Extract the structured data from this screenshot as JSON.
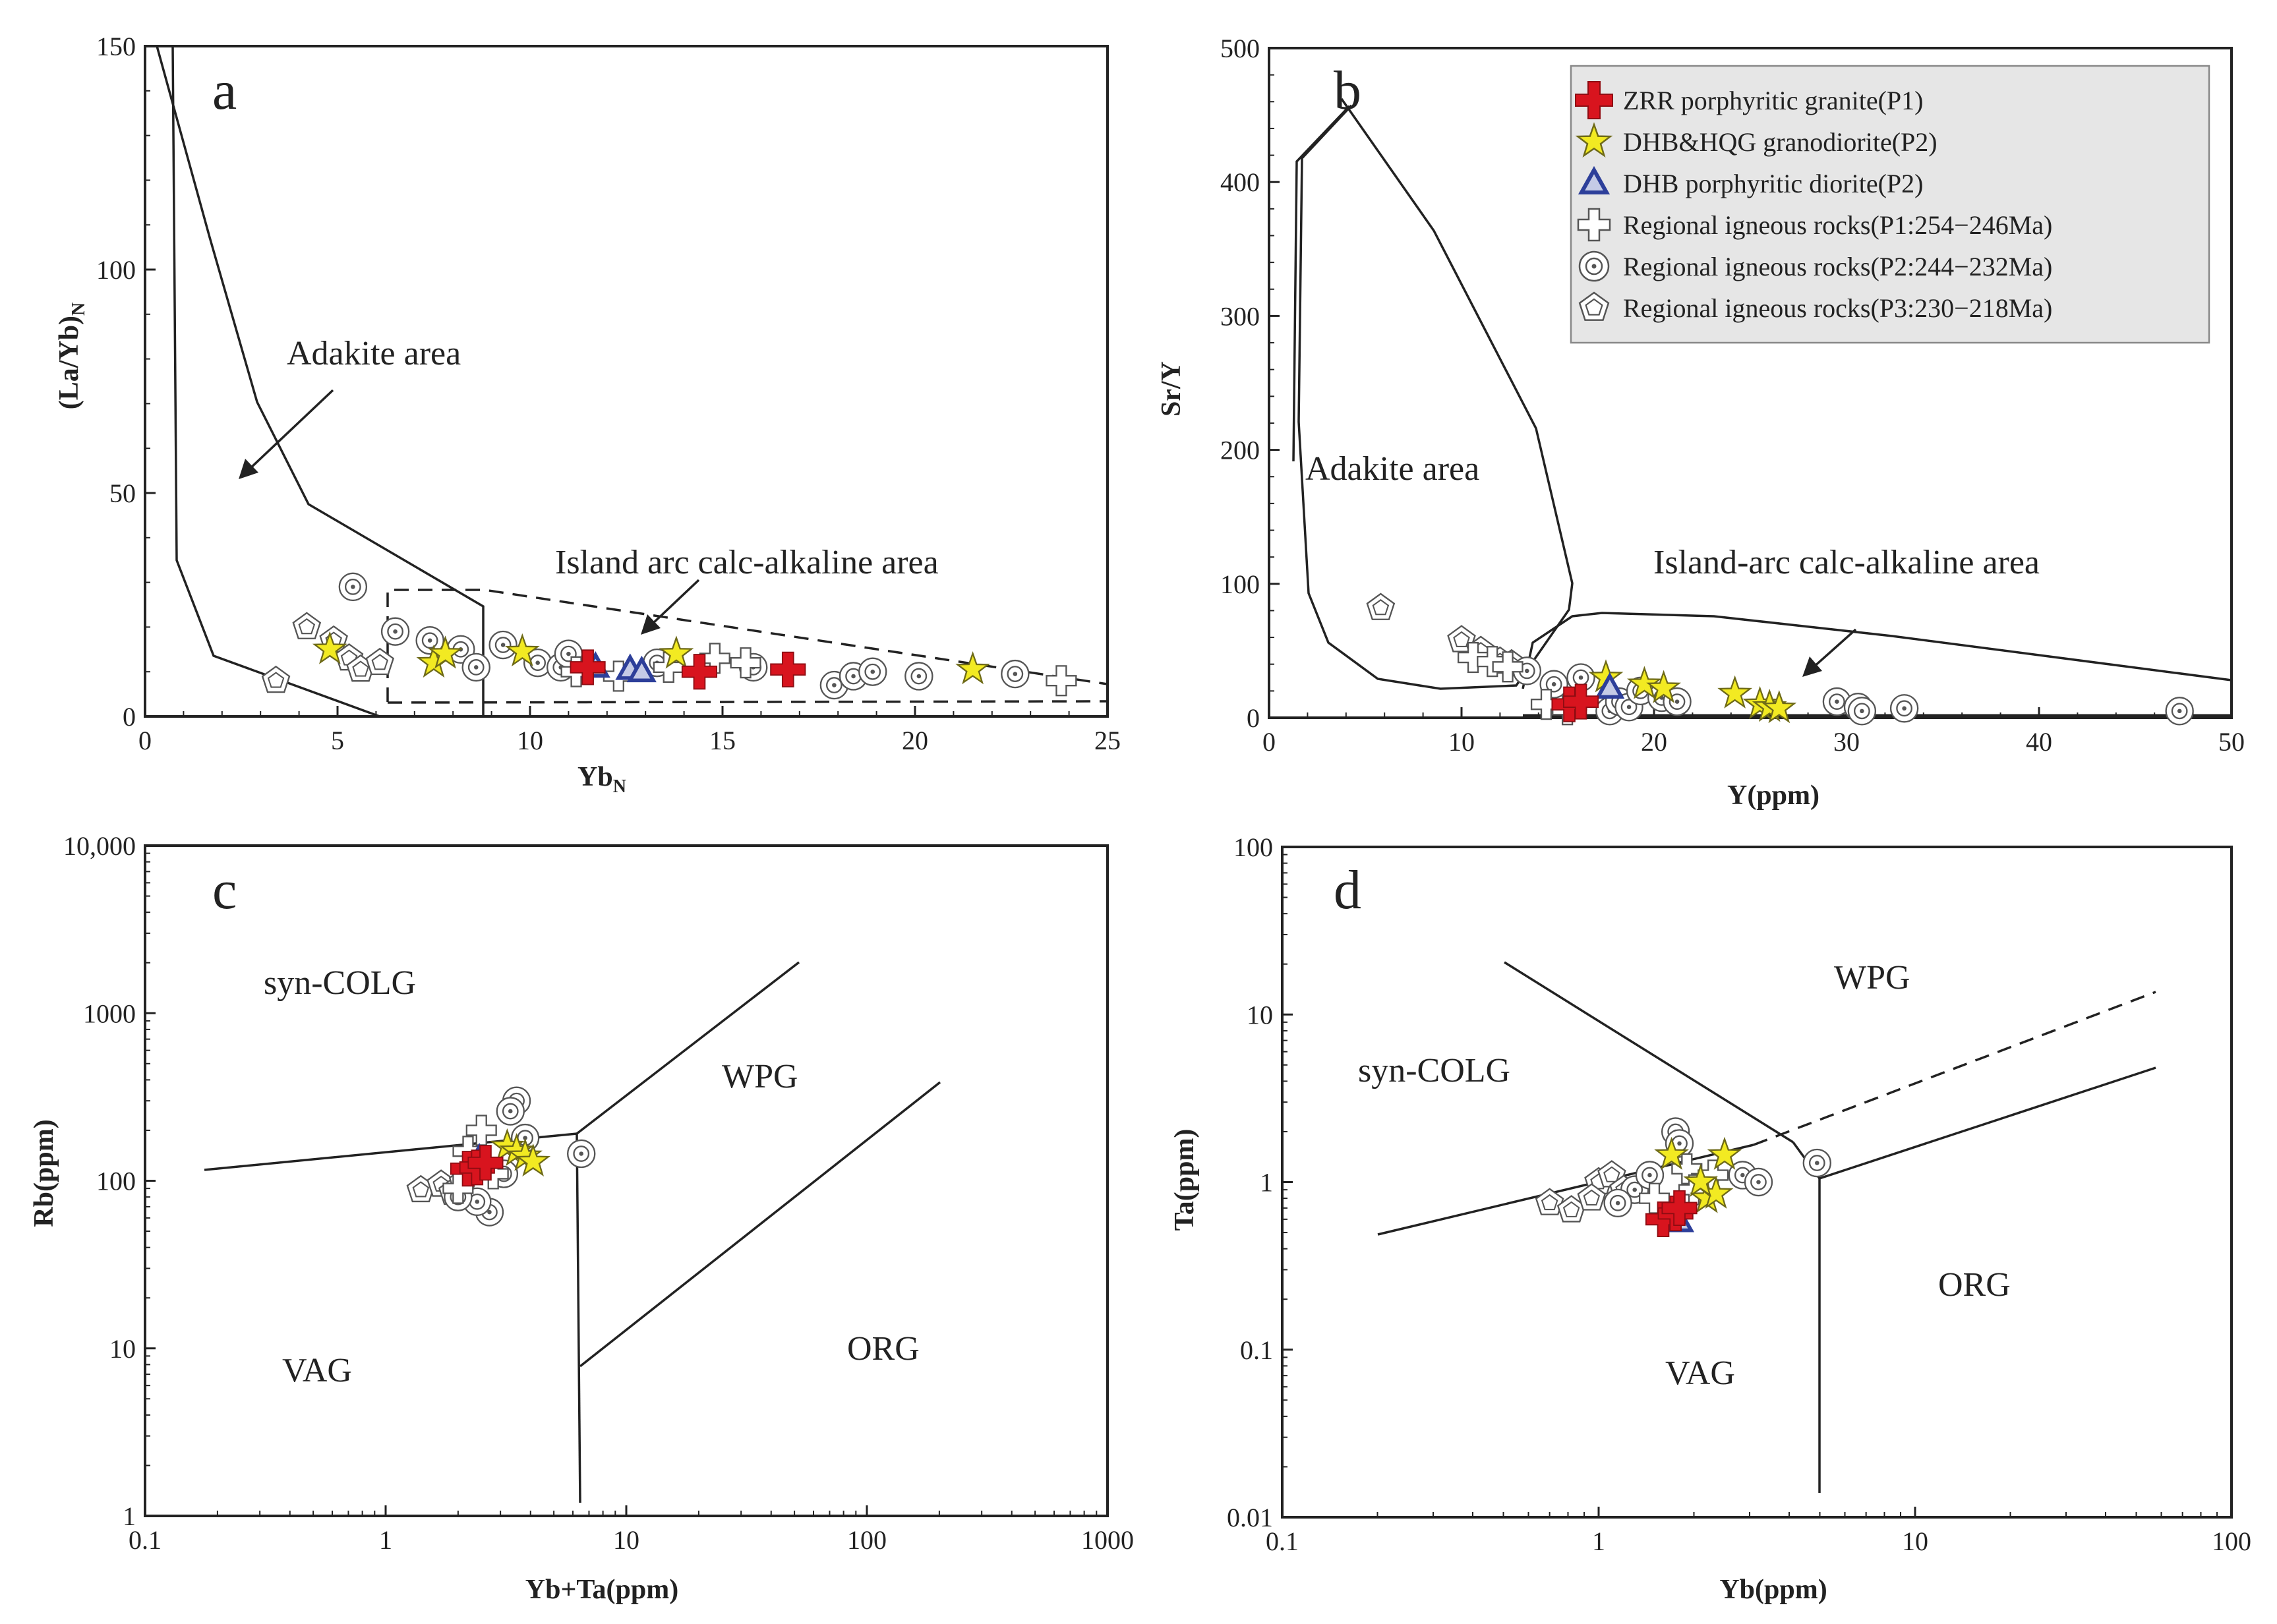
{
  "legend": {
    "items": [
      {
        "label": "ZRR porphyritic granite(P1)",
        "symbol": "cross-red"
      },
      {
        "label": "DHB&HQG granodiorite(P2)",
        "symbol": "star-yellow"
      },
      {
        "label": "DHB porphyritic diorite(P2)",
        "symbol": "triangle-blue"
      },
      {
        "label": "Regional igneous rocks(P1:254−246Ma)",
        "symbol": "cross-open"
      },
      {
        "label": "Regional igneous rocks(P2:244−232Ma)",
        "symbol": "bullseye-open"
      },
      {
        "label": "Regional igneous rocks(P3:230−218Ma)",
        "symbol": "pentagon-open"
      }
    ]
  },
  "colors": {
    "red": "#d8141e",
    "yellow": "#f2ea22",
    "blue": "#2d3f9a",
    "open": "#6a6a6a",
    "legend_bg": "#e6e6e6"
  },
  "chart_data": [
    {
      "panel": "a",
      "type": "scatter",
      "xlabel": "Yb",
      "xlabel_sub": "N",
      "ylabel": "(La/Yb)",
      "ylabel_sub": "N",
      "xlim": [
        0,
        25
      ],
      "ylim": [
        0,
        150
      ],
      "xticks": [
        0,
        5,
        10,
        15,
        20,
        25
      ],
      "yticks": [
        0,
        50,
        100,
        150
      ],
      "fields": [
        {
          "label": "Adakite area"
        },
        {
          "label": "Island arc calc-alkaline area"
        }
      ],
      "series": [
        {
          "name": "ZRR porphyritic granite(P1)",
          "symbol": "cross-red",
          "points": [
            [
              11.5,
              11
            ],
            [
              14.4,
              10
            ],
            [
              16.7,
              10.5
            ]
          ]
        },
        {
          "name": "DHB&HQG granodiorite(P2)",
          "symbol": "star-yellow",
          "points": [
            [
              4.8,
              15
            ],
            [
              7.5,
              12
            ],
            [
              7.8,
              14
            ],
            [
              9.8,
              14.5
            ],
            [
              13.8,
              14
            ],
            [
              21.5,
              10.5
            ]
          ]
        },
        {
          "name": "DHB porphyritic diorite(P2)",
          "symbol": "triangle-blue",
          "points": [
            [
              11.7,
              11
            ],
            [
              12.6,
              10.5
            ],
            [
              12.9,
              10
            ]
          ]
        },
        {
          "name": "Regional igneous rocks(P1:254−246Ma)",
          "symbol": "cross-open",
          "points": [
            [
              11.2,
              10
            ],
            [
              12.3,
              9
            ],
            [
              13.6,
              11
            ],
            [
              14.8,
              13
            ],
            [
              15.6,
              12
            ],
            [
              23.8,
              8
            ]
          ]
        },
        {
          "name": "Regional igneous rocks(P2:244−232Ma)",
          "symbol": "bullseye-open",
          "points": [
            [
              5.4,
              29
            ],
            [
              6.5,
              19
            ],
            [
              7.4,
              17
            ],
            [
              8.2,
              15
            ],
            [
              8.6,
              11
            ],
            [
              9.3,
              16
            ],
            [
              10.2,
              12
            ],
            [
              10.8,
              11
            ],
            [
              11,
              14
            ],
            [
              13.3,
              12
            ],
            [
              15.8,
              11
            ],
            [
              17.9,
              7
            ],
            [
              18.4,
              9
            ],
            [
              18.9,
              10
            ],
            [
              20.1,
              9
            ],
            [
              22.6,
              9.5
            ]
          ]
        },
        {
          "name": "Regional igneous rocks(P3:230−218Ma)",
          "symbol": "pentagon-open",
          "points": [
            [
              3.4,
              8
            ],
            [
              4.2,
              20
            ],
            [
              4.9,
              17
            ],
            [
              5.3,
              13
            ],
            [
              5.6,
              10.5
            ],
            [
              6.1,
              12
            ]
          ]
        }
      ]
    },
    {
      "panel": "b",
      "type": "scatter",
      "xlabel": "Y(ppm)",
      "ylabel": "Sr/Y",
      "xlim": [
        0,
        50
      ],
      "ylim": [
        0,
        500
      ],
      "xticks": [
        0,
        10,
        20,
        30,
        40,
        50
      ],
      "yticks": [
        0,
        100,
        200,
        300,
        400,
        500
      ],
      "fields": [
        {
          "label": "Adakite area"
        },
        {
          "label": "Island-arc calc-alkaline area"
        }
      ],
      "series": [
        {
          "name": "ZRR porphyritic granite(P1)",
          "symbol": "cross-red",
          "points": [
            [
              15.6,
              10
            ],
            [
              16.2,
              12
            ]
          ]
        },
        {
          "name": "DHB&HQG granodiorite(P2)",
          "symbol": "star-yellow",
          "points": [
            [
              17.5,
              30
            ],
            [
              19.5,
              25
            ],
            [
              20.5,
              22
            ],
            [
              24.2,
              18
            ],
            [
              25.5,
              10
            ],
            [
              26,
              8
            ],
            [
              26.5,
              7
            ]
          ]
        },
        {
          "name": "DHB porphyritic diorite(P2)",
          "symbol": "triangle-blue",
          "points": [
            [
              17.7,
              22
            ]
          ]
        },
        {
          "name": "Regional igneous rocks(P1:254−246Ma)",
          "symbol": "cross-open",
          "points": [
            [
              10.6,
              45
            ],
            [
              11.6,
              42
            ],
            [
              12.4,
              38
            ],
            [
              14.4,
              10
            ],
            [
              15.5,
              6
            ]
          ]
        },
        {
          "name": "Regional igneous rocks(P2:244−232Ma)",
          "symbol": "bullseye-open",
          "points": [
            [
              13.4,
              35
            ],
            [
              14.8,
              25
            ],
            [
              16.2,
              30
            ],
            [
              17.7,
              5
            ],
            [
              18.2,
              12
            ],
            [
              18.7,
              8
            ],
            [
              19.3,
              20
            ],
            [
              20.4,
              15
            ],
            [
              21.2,
              12
            ],
            [
              29.5,
              12
            ],
            [
              30.6,
              8
            ],
            [
              30.8,
              5
            ],
            [
              33,
              7
            ],
            [
              47.3,
              5
            ]
          ]
        },
        {
          "name": "Regional igneous rocks(P3:230−218Ma)",
          "symbol": "pentagon-open",
          "points": [
            [
              5.8,
              82
            ],
            [
              10,
              58
            ],
            [
              11,
              50
            ],
            [
              12,
              42
            ],
            [
              12.6,
              40
            ]
          ]
        }
      ]
    },
    {
      "panel": "c",
      "type": "scatter",
      "scale": "log",
      "xlabel": "Yb+Ta(ppm)",
      "ylabel": "Rb(ppm)",
      "xlim": [
        0.1,
        1000
      ],
      "ylim": [
        1,
        10000
      ],
      "xticks": [
        0.1,
        1,
        10,
        100,
        1000
      ],
      "xtick_labels": [
        "0.1",
        "1",
        "10",
        "100",
        "1000"
      ],
      "yticks": [
        1,
        10,
        100,
        1000,
        10000
      ],
      "ytick_labels": [
        "1",
        "10",
        "100",
        "1000",
        "10,000"
      ],
      "fields": [
        {
          "label": "syn-COLG"
        },
        {
          "label": "WPG"
        },
        {
          "label": "VAG"
        },
        {
          "label": "ORG"
        }
      ],
      "series": [
        {
          "name": "ZRR porphyritic granite(P1)",
          "symbol": "cross-red",
          "points": [
            [
              2.2,
              118
            ],
            [
              2.4,
              120
            ],
            [
              2.6,
              128
            ]
          ]
        },
        {
          "name": "DHB&HQG granodiorite(P2)",
          "symbol": "star-yellow",
          "points": [
            [
              3.2,
              160
            ],
            [
              3.5,
              150
            ],
            [
              3.8,
              140
            ],
            [
              4.1,
              130
            ]
          ]
        },
        {
          "name": "DHB porphyritic diorite(P2)",
          "symbol": "triangle-blue",
          "points": [
            [
              2.45,
              135
            ]
          ]
        },
        {
          "name": "Regional igneous rocks(P1:254−246Ma)",
          "symbol": "cross-open",
          "points": [
            [
              2.5,
              200
            ],
            [
              2.2,
              150
            ],
            [
              2.8,
              110
            ],
            [
              2,
              90
            ]
          ]
        },
        {
          "name": "Regional igneous rocks(P2:244−232Ma)",
          "symbol": "bullseye-open",
          "points": [
            [
              3.5,
              300
            ],
            [
              3.3,
              260
            ],
            [
              3.8,
              180
            ],
            [
              6.5,
              145
            ],
            [
              2.7,
              65
            ],
            [
              2.4,
              75
            ],
            [
              2,
              80
            ],
            [
              3.1,
              110
            ]
          ]
        },
        {
          "name": "Regional igneous rocks(P3:230−218Ma)",
          "symbol": "pentagon-open",
          "points": [
            [
              1.4,
              88
            ],
            [
              1.7,
              95
            ],
            [
              1.9,
              85
            ],
            [
              2.1,
              98
            ]
          ]
        }
      ]
    },
    {
      "panel": "d",
      "type": "scatter",
      "scale": "log",
      "xlabel": "Yb(ppm)",
      "ylabel": "Ta(ppm)",
      "xlim": [
        0.1,
        100
      ],
      "ylim": [
        0.01,
        100
      ],
      "xticks": [
        0.1,
        1,
        10,
        100
      ],
      "xtick_labels": [
        "0.1",
        "1",
        "10",
        "100"
      ],
      "yticks": [
        0.01,
        0.1,
        1,
        10,
        100
      ],
      "ytick_labels": [
        "0.01",
        "0.1",
        "1",
        "10",
        "100"
      ],
      "fields": [
        {
          "label": "syn-COLG"
        },
        {
          "label": "WPG"
        },
        {
          "label": "VAG"
        },
        {
          "label": "ORG"
        }
      ],
      "series": [
        {
          "name": "ZRR porphyritic granite(P1)",
          "symbol": "cross-red",
          "points": [
            [
              1.6,
              0.6
            ],
            [
              1.75,
              0.65
            ],
            [
              1.8,
              0.7
            ]
          ]
        },
        {
          "name": "DHB&HQG granodiorite(P2)",
          "symbol": "star-yellow",
          "points": [
            [
              1.7,
              1.45
            ],
            [
              2.5,
              1.45
            ],
            [
              2.2,
              0.8
            ],
            [
              2.35,
              0.85
            ],
            [
              2.1,
              1
            ]
          ]
        },
        {
          "name": "DHB porphyritic diorite(P2)",
          "symbol": "triangle-blue",
          "points": [
            [
              1.8,
              0.58
            ]
          ]
        },
        {
          "name": "Regional igneous rocks(P1:254−246Ma)",
          "symbol": "cross-open",
          "points": [
            [
              1.9,
              1.2
            ],
            [
              2,
              0.9
            ],
            [
              1.5,
              0.8
            ],
            [
              2.3,
              1.1
            ]
          ]
        },
        {
          "name": "Regional igneous rocks(P2:244−232Ma)",
          "symbol": "bullseye-open",
          "points": [
            [
              1.75,
              2
            ],
            [
              1.8,
              1.7
            ],
            [
              2.85,
              1.1
            ],
            [
              3.2,
              1
            ],
            [
              4.9,
              1.3
            ],
            [
              1.3,
              0.9
            ],
            [
              1.15,
              0.75
            ],
            [
              1.45,
              1.1
            ]
          ]
        },
        {
          "name": "Regional igneous rocks(P3:230−218Ma)",
          "symbol": "pentagon-open",
          "points": [
            [
              0.7,
              0.75
            ],
            [
              0.82,
              0.68
            ],
            [
              1,
              1
            ],
            [
              1.1,
              1.1
            ],
            [
              1.2,
              0.9
            ],
            [
              0.95,
              0.8
            ]
          ]
        }
      ]
    }
  ]
}
